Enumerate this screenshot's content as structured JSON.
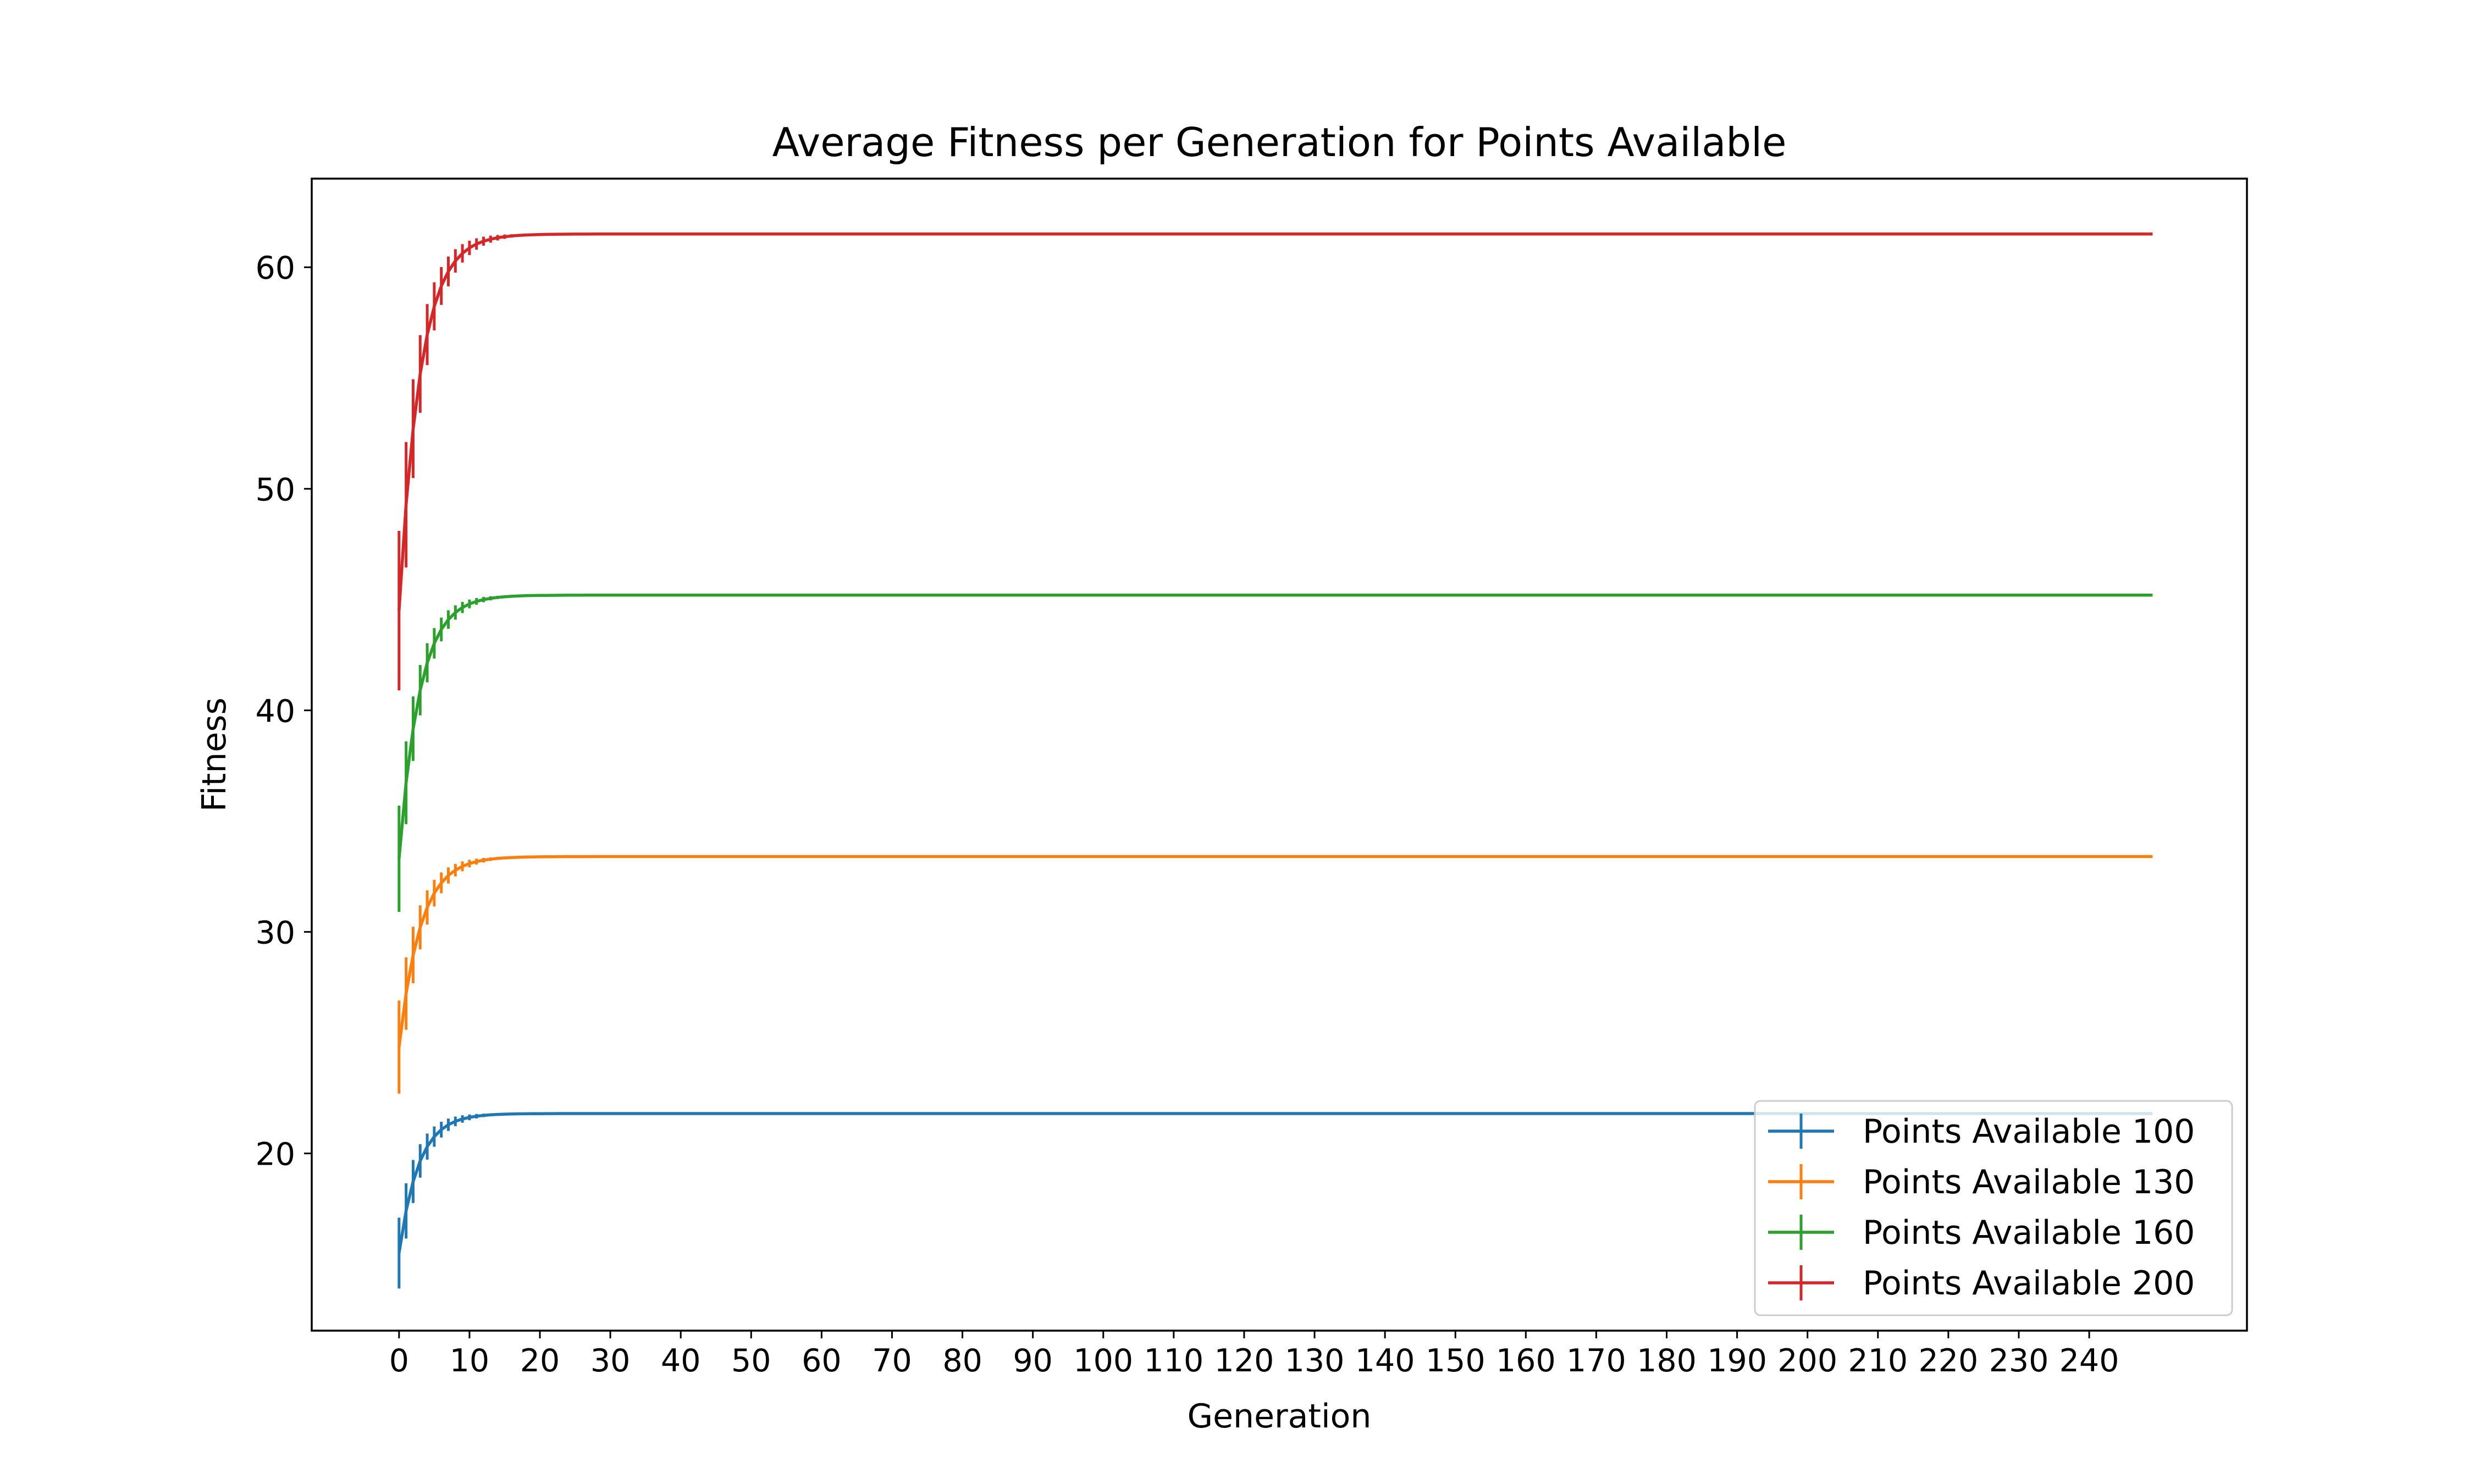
{
  "chart_data": {
    "type": "line",
    "title": "Average Fitness per Generation for Points Available",
    "xlabel": "Generation",
    "ylabel": "Fitness",
    "xlim": [
      -12.4,
      262.4
    ],
    "ylim": [
      12.0,
      64.0
    ],
    "xticks": [
      0,
      10,
      20,
      30,
      40,
      50,
      60,
      70,
      80,
      90,
      100,
      110,
      120,
      130,
      140,
      150,
      160,
      170,
      180,
      190,
      200,
      210,
      220,
      230,
      240
    ],
    "yticks": [
      20,
      30,
      40,
      50,
      60
    ],
    "grid": false,
    "legend_position": "lower-right",
    "generations": 250,
    "series": [
      {
        "name": "Points Available 100",
        "color": "#1f77b4",
        "start": 15.5,
        "final": 21.8,
        "decay": 0.36,
        "err0": 1.6,
        "errdecay": 0.25
      },
      {
        "name": "Points Available 130",
        "color": "#ff7f0e",
        "start": 24.8,
        "final": 33.4,
        "decay": 0.33,
        "err0": 2.1,
        "errdecay": 0.25
      },
      {
        "name": "Points Available 160",
        "color": "#2ca02c",
        "start": 33.3,
        "final": 45.2,
        "decay": 0.34,
        "err0": 2.4,
        "errdecay": 0.25
      },
      {
        "name": "Points Available 200",
        "color": "#d62728",
        "start": 44.5,
        "final": 61.5,
        "decay": 0.33,
        "err0": 3.6,
        "errdecay": 0.24
      }
    ]
  }
}
